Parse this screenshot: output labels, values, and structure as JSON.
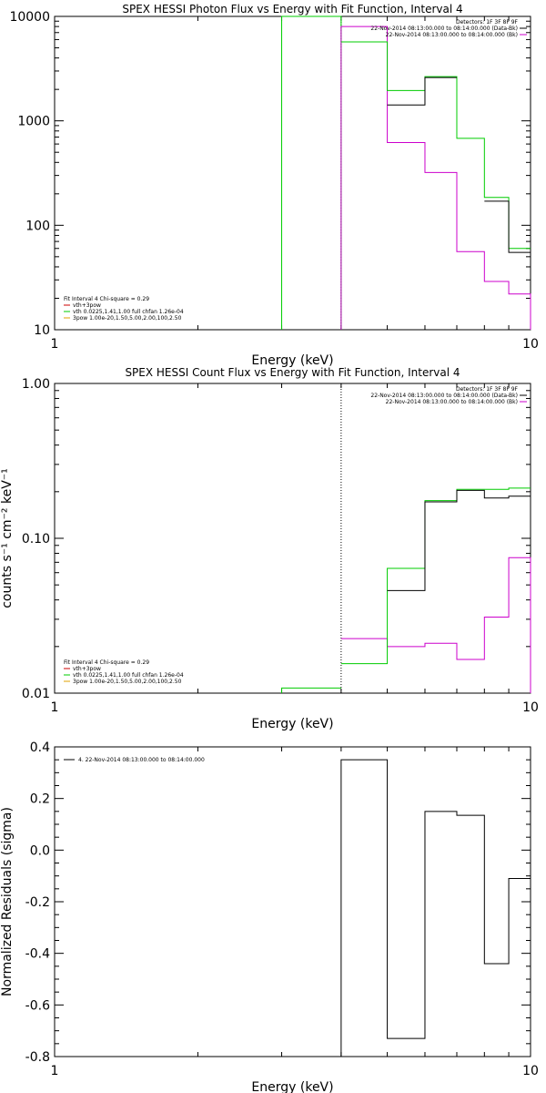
{
  "colors": {
    "black": "#000000",
    "magenta": "#cc00cc",
    "green": "#00cc00",
    "red": "#cc0000",
    "orange": "#e0a000"
  },
  "chart_data": [
    {
      "type": "line",
      "title": "SPEX HESSI Photon Flux vs Energy with Fit Function, Interval 4",
      "xlabel": "Energy (keV)",
      "ylabel": "",
      "xscale": "log",
      "yscale": "log",
      "xlim": [
        1,
        10
      ],
      "ylim": [
        10,
        10000
      ],
      "xticks": [
        "1",
        "10"
      ],
      "yticks": [
        {
          "v": 10,
          "label": "10"
        },
        {
          "v": 100,
          "label": "100"
        },
        {
          "v": 1000,
          "label": "1000"
        },
        {
          "v": 10000,
          "label": "10000"
        }
      ],
      "edges": [
        4.0,
        5.0,
        6.0,
        7.0,
        8.0,
        9.0,
        10.0
      ],
      "dotted_x": 4.0,
      "series": [
        {
          "color": "magenta",
          "values": [
            8000,
            620,
            320,
            56,
            29,
            22
          ],
          "drop_start": true,
          "drop_end": true,
          "drop_to": 10
        },
        {
          "color": "green",
          "values": [
            5700,
            1950,
            2650,
            680,
            185,
            60
          ]
        },
        {
          "color": "black",
          "values": [
            null,
            1420,
            2600,
            null,
            170,
            55
          ]
        }
      ],
      "green_spike": {
        "x1": 3.0,
        "x2": 4.0,
        "ytop": 10000,
        "ybottom": 10
      },
      "legend_right": [
        {
          "text": "Detectors: 1F 3F 8F 9F",
          "color": ""
        },
        {
          "text": "22-Nov-2014 08:13:00.000 to 08:14:00.000 (Data-Bk)",
          "color": "black"
        },
        {
          "text": "22-Nov-2014 08:13:00.000 to 08:14:00.000 (Bk)",
          "color": "magenta"
        }
      ],
      "legend_left": [
        {
          "text": "Fit Interval 4   Chi-square = 0.29",
          "color": ""
        },
        {
          "text": "vth+3pow",
          "color": "red"
        },
        {
          "text": "vth 0.0225,1.41,1.00  full chfan 1.26e-04",
          "color": "green"
        },
        {
          "text": "3pow 1.00e-20,1.50,5.00,2.00,100,2.50",
          "color": "orange"
        }
      ]
    },
    {
      "type": "line",
      "title": "SPEX HESSI Count Flux vs Energy with Fit Function, Interval 4",
      "xlabel": "Energy (keV)",
      "ylabel": "counts s⁻¹ cm⁻² keV⁻¹",
      "xscale": "log",
      "yscale": "log",
      "xlim": [
        1,
        10
      ],
      "ylim": [
        0.01,
        1.0
      ],
      "xticks": [
        "1",
        "10"
      ],
      "yticks": [
        {
          "v": 0.01,
          "label": "0.01"
        },
        {
          "v": 0.1,
          "label": "0.10"
        },
        {
          "v": 1.0,
          "label": "1.00"
        }
      ],
      "edges": [
        4.0,
        5.0,
        6.0,
        7.0,
        8.0,
        9.0,
        10.0
      ],
      "dotted_x": 4.0,
      "series": [
        {
          "color": "magenta",
          "values": [
            0.0225,
            0.02,
            0.021,
            0.0165,
            0.031,
            0.075
          ],
          "drop_end": true,
          "drop_to": 0.01
        },
        {
          "color": "green",
          "values": [
            0.0155,
            0.064,
            0.175,
            0.207,
            0.207,
            0.211
          ]
        },
        {
          "color": "black",
          "values": [
            null,
            0.046,
            0.172,
            0.204,
            0.182,
            0.187
          ]
        }
      ],
      "green_step_left": {
        "x1": 3.0,
        "x2": 4.0,
        "y": 0.0108
      },
      "legend_right": [
        {
          "text": "Detectors: 1F 3F 8F 9F",
          "color": ""
        },
        {
          "text": "22-Nov-2014 08:13:00.000 to 08:14:00.000 (Data-Bk)",
          "color": "black"
        },
        {
          "text": "22-Nov-2014 08:13:00.000 to 08:14:00.000 (Bk)",
          "color": "magenta"
        }
      ],
      "legend_left": [
        {
          "text": "Fit Interval 4   Chi-square = 0.29",
          "color": ""
        },
        {
          "text": "vth+3pow",
          "color": "red"
        },
        {
          "text": "vth 0.0225,1.41,1.00  full chfan 1.26e-04",
          "color": "green"
        },
        {
          "text": "3pow 1.00e-20,1.50,5.00,2.00,100,2.50",
          "color": "orange"
        }
      ]
    },
    {
      "type": "line",
      "title": "",
      "xlabel": "Energy (keV)",
      "ylabel": "Normalized Residuals (sigma)",
      "xscale": "log",
      "yscale": "linear",
      "xlim": [
        1,
        10
      ],
      "ylim": [
        -0.8,
        0.4
      ],
      "xticks": [
        "1",
        "10"
      ],
      "yticks": [
        {
          "v": -0.8,
          "label": "-0.8"
        },
        {
          "v": -0.6,
          "label": "-0.6"
        },
        {
          "v": -0.4,
          "label": "-0.4"
        },
        {
          "v": -0.2,
          "label": "-0.2"
        },
        {
          "v": 0.0,
          "label": "0.0"
        },
        {
          "v": 0.2,
          "label": "0.2"
        },
        {
          "v": 0.4,
          "label": "0.4"
        }
      ],
      "edges": [
        4.0,
        5.0,
        6.0,
        7.0,
        8.0,
        9.0,
        10.0
      ],
      "series": [
        {
          "color": "black",
          "values": [
            0.35,
            -0.73,
            0.15,
            0.135,
            -0.44,
            -0.11
          ],
          "drop_start": true,
          "drop_to": -0.8
        }
      ],
      "legend_left_top": [
        {
          "text": "4. 22-Nov-2014 08:13:00.000 to 08:14:00.000",
          "color": "black"
        }
      ]
    }
  ]
}
